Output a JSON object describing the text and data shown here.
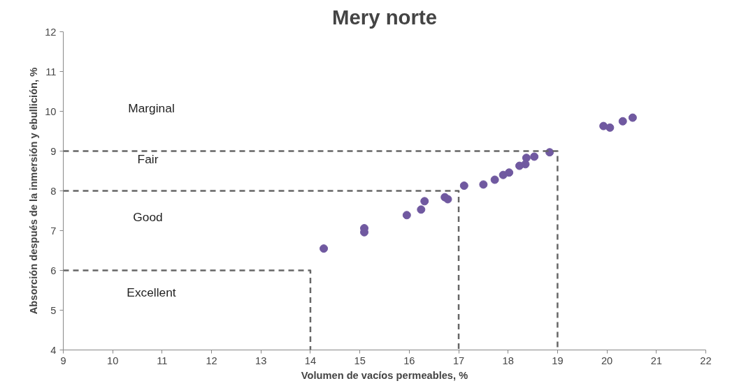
{
  "chart_data": {
    "type": "scatter",
    "title": "Mery norte",
    "xlabel": "Volumen de vacíos permeables, %",
    "ylabel": "Absorción después de la inmersión y ebullición, %",
    "xlim": [
      9,
      22
    ],
    "ylim": [
      4,
      12
    ],
    "xticks": [
      9,
      10,
      11,
      12,
      13,
      14,
      15,
      16,
      17,
      18,
      19,
      20,
      21,
      22
    ],
    "yticks": [
      4,
      5,
      6,
      7,
      8,
      9,
      10,
      11,
      12
    ],
    "grid": false,
    "marker": "circle",
    "series": [
      {
        "color": "#7059a0",
        "x": [
          14.27,
          15.09,
          15.09,
          15.95,
          16.24,
          16.31,
          16.72,
          16.78,
          17.11,
          17.5,
          17.73,
          17.9,
          18.02,
          18.23,
          18.35,
          18.37,
          18.53,
          18.84,
          19.93,
          20.06,
          20.32,
          20.52
        ],
        "values": [
          6.55,
          7.06,
          6.96,
          7.39,
          7.53,
          7.74,
          7.84,
          7.79,
          8.13,
          8.16,
          8.28,
          8.4,
          8.46,
          8.63,
          8.67,
          8.83,
          8.86,
          8.97,
          9.63,
          9.59,
          9.75,
          9.84
        ]
      },
      {
        "type": "line",
        "color": "#666666",
        "line_style": "dashed",
        "marker": "none",
        "x": [
          9,
          14,
          14
        ],
        "values": [
          6,
          6,
          4
        ]
      },
      {
        "type": "line",
        "color": "#666666",
        "line_style": "dashed",
        "marker": "none",
        "x": [
          9,
          17,
          17
        ],
        "values": [
          8,
          8,
          4
        ]
      },
      {
        "type": "line",
        "color": "#666666",
        "line_style": "dashed",
        "marker": "none",
        "x": [
          9,
          19,
          19
        ],
        "values": [
          9,
          9,
          4
        ]
      }
    ],
    "annotations": [
      "Marginal",
      "Fair",
      "Good",
      "Excellent"
    ]
  }
}
